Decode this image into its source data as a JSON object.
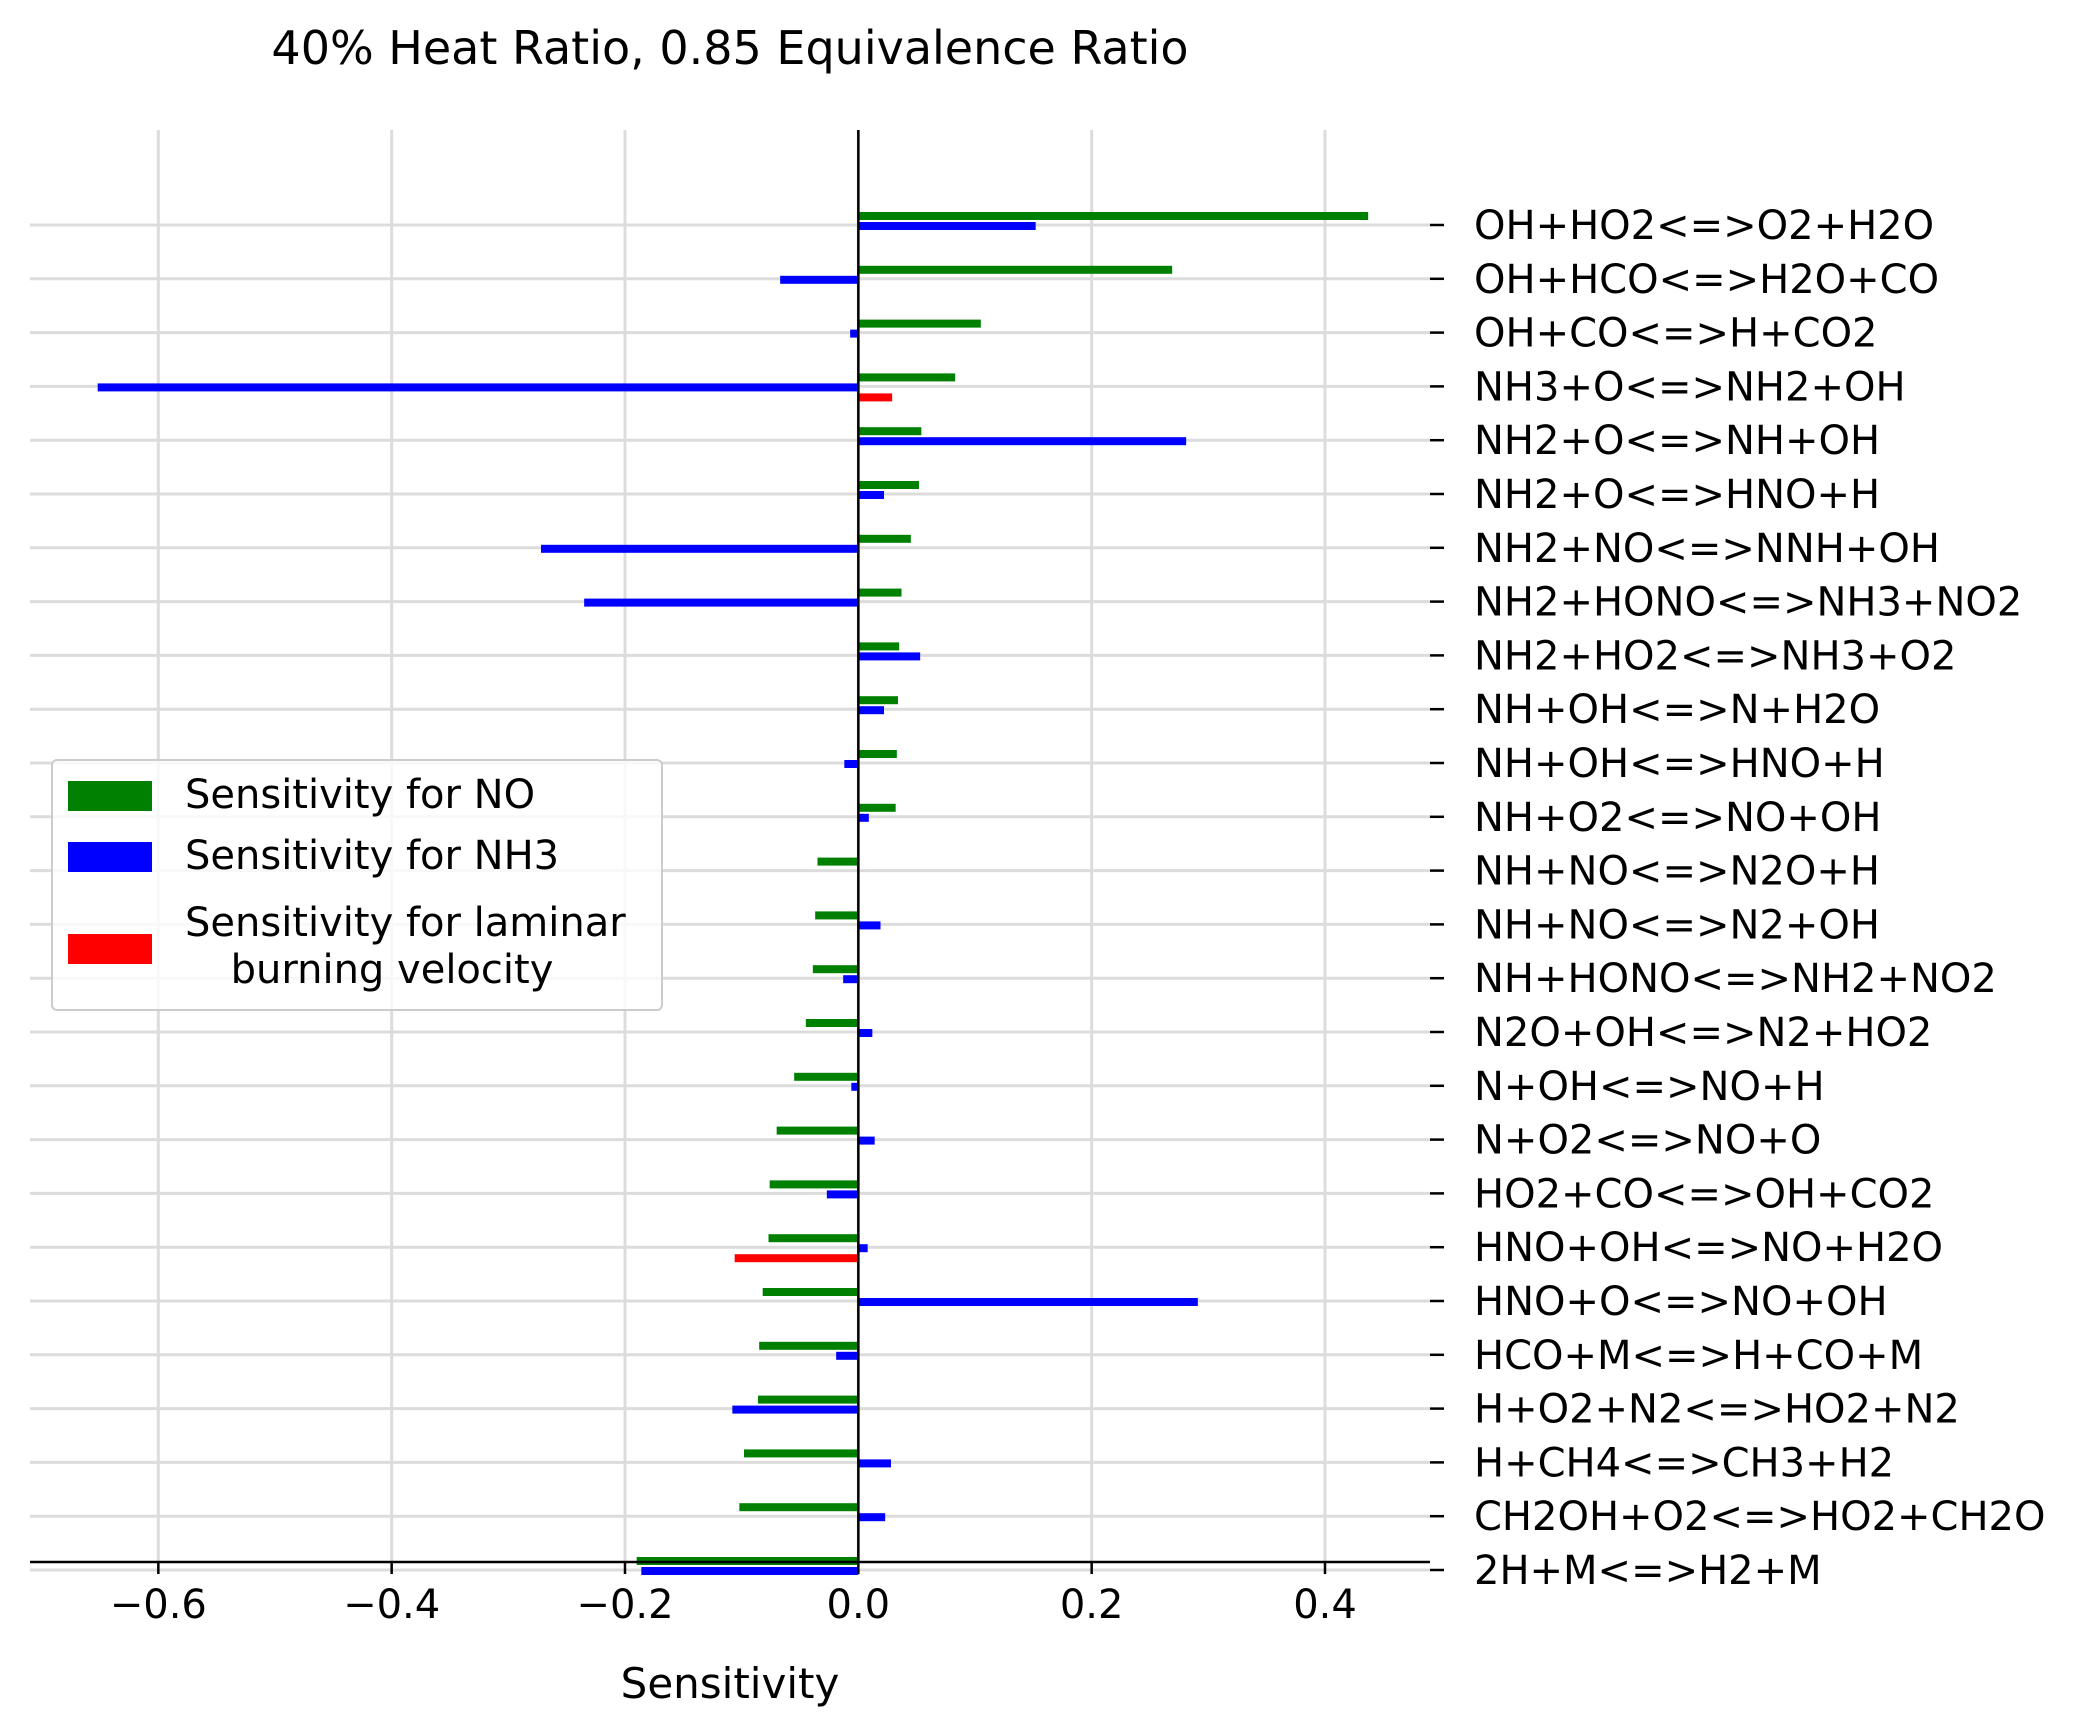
{
  "chart_data": {
    "type": "bar",
    "orientation": "horizontal",
    "title": "40% Heat Ratio, 0.85 Equivalence Ratio",
    "xlabel": "Sensitivity",
    "ylabel": "",
    "xlim": [
      -0.71,
      0.49
    ],
    "xticks": [
      -0.6,
      -0.4,
      -0.2,
      0.0,
      0.2,
      0.4
    ],
    "xtick_labels": [
      "−0.6",
      "−0.4",
      "−0.2",
      "0.0",
      "0.2",
      "0.4"
    ],
    "grid": true,
    "legend_position": "center-left",
    "categories": [
      "OH+HO2<=>O2+H2O",
      "OH+HCO<=>H2O+CO",
      "OH+CO<=>H+CO2",
      "NH3+O<=>NH2+OH",
      "NH2+O<=>NH+OH",
      "NH2+O<=>HNO+H",
      "NH2+NO<=>NNH+OH",
      "NH2+HONO<=>NH3+NO2",
      "NH2+HO2<=>NH3+O2",
      "NH+OH<=>N+H2O",
      "NH+OH<=>HNO+H",
      "NH+O2<=>NO+OH",
      "NH+NO<=>N2O+H",
      "NH+NO<=>N2+OH",
      "NH+HONO<=>NH2+NO2",
      "N2O+OH<=>N2+HO2",
      "N+OH<=>NO+H",
      "N+O2<=>NO+O",
      "HO2+CO<=>OH+CO2",
      "HNO+OH<=>NO+H2O",
      "HNO+O<=>NO+OH",
      "HCO+M<=>H+CO+M",
      "H+O2+N2<=>HO2+N2",
      "H+CH4<=>CH3+H2",
      "CH2OH+O2<=>HO2+CH2O",
      "2H+M<=>H2+M"
    ],
    "series": [
      {
        "name": "Sensitivity for NO",
        "color": "#008000",
        "values": [
          0.437,
          0.269,
          0.105,
          0.083,
          0.054,
          0.052,
          0.045,
          0.037,
          0.035,
          0.034,
          0.033,
          0.032,
          -0.035,
          -0.037,
          -0.039,
          -0.045,
          -0.055,
          -0.07,
          -0.076,
          -0.077,
          -0.082,
          -0.085,
          -0.086,
          -0.098,
          -0.102,
          -0.19
        ]
      },
      {
        "name": "Sensitivity for NH3",
        "color": "#0000ff",
        "values": [
          0.152,
          -0.067,
          -0.007,
          -0.652,
          0.281,
          0.022,
          -0.272,
          -0.235,
          0.053,
          0.022,
          -0.012,
          0.009,
          0.0,
          0.019,
          -0.013,
          0.012,
          -0.006,
          0.014,
          -0.027,
          0.008,
          0.291,
          -0.019,
          -0.108,
          0.028,
          0.023,
          -0.186
        ]
      },
      {
        "name": "Sensitivity for laminar\nburning velocity",
        "color": "#ff0000",
        "values": [
          0,
          0,
          0,
          0.029,
          0,
          0,
          0,
          0,
          0,
          0,
          0,
          0,
          0,
          0,
          0,
          0,
          0,
          0,
          0,
          -0.106,
          0,
          0,
          0,
          0,
          0,
          0
        ]
      }
    ],
    "legend": [
      {
        "label": "Sensitivity for NO",
        "color": "#008000"
      },
      {
        "label": "Sensitivity for NH3",
        "color": "#0000ff"
      },
      {
        "label_line1": "Sensitivity for laminar",
        "label_line2": "burning velocity",
        "color": "#ff0000"
      }
    ]
  }
}
